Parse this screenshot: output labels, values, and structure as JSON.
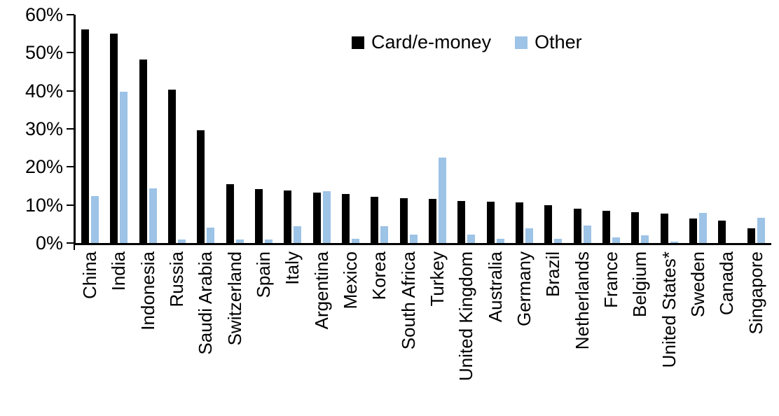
{
  "legend": {
    "series1": "Card/e-money",
    "series2": "Other"
  },
  "y_axis": {
    "tick_labels": [
      "60%",
      "50%",
      "40%",
      "30%",
      "20%",
      "10%",
      "0%"
    ]
  },
  "colors": {
    "card_e_money": "#000000",
    "other": "#9DC3E6",
    "axis": "#000000"
  },
  "chart_data": {
    "type": "bar",
    "title": "",
    "xlabel": "",
    "ylabel": "",
    "ylim": [
      0,
      60
    ],
    "y_tick_step": 10,
    "y_tick_format": "percent",
    "grid": false,
    "legend_position": "top-center",
    "categories": [
      "China",
      "India",
      "Indonesia",
      "Russia",
      "Saudi Arabia",
      "Switzerland",
      "Spain",
      "Italy",
      "Argentina",
      "Mexico",
      "Korea",
      "South Africa",
      "Turkey",
      "United Kingdom",
      "Australia",
      "Germany",
      "Brazil",
      "Netherlands",
      "France",
      "Belgium",
      "United States*",
      "Sweden",
      "Canada",
      "Singapore"
    ],
    "series": [
      {
        "name": "Card/e-money",
        "key": "card-e-money",
        "color": "#000000",
        "values": [
          56.2,
          55.0,
          48.2,
          40.4,
          29.6,
          15.5,
          14.1,
          13.9,
          13.3,
          12.9,
          12.1,
          11.7,
          11.6,
          11.0,
          10.8,
          10.6,
          10.0,
          9.1,
          8.5,
          8.1,
          7.8,
          6.4,
          5.9,
          3.9
        ]
      },
      {
        "name": "Other",
        "key": "other",
        "color": "#9DC3E6",
        "values": [
          12.3,
          39.7,
          14.4,
          0.9,
          4.0,
          1.0,
          1.0,
          4.5,
          13.7,
          1.2,
          4.5,
          2.3,
          22.4,
          2.3,
          1.2,
          3.8,
          1.1,
          4.7,
          1.4,
          2.0,
          0.3,
          8.0,
          0,
          6.6
        ]
      }
    ]
  }
}
